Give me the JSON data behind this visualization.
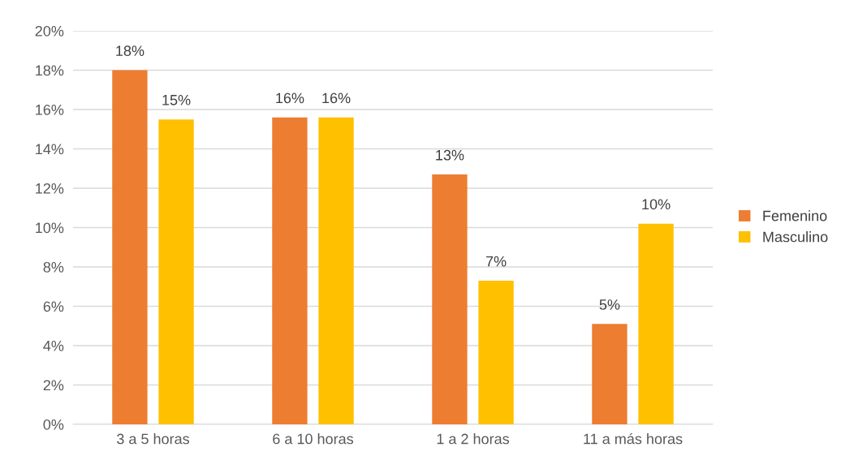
{
  "chart_data": {
    "type": "bar",
    "categories": [
      "3 a 5 horas",
      "6 a 10 horas",
      "1 a 2 horas",
      "11 a más horas"
    ],
    "series": [
      {
        "name": "Femenino",
        "color": "#ed7d31",
        "values": [
          18.0,
          15.6,
          12.7,
          5.1
        ],
        "value_labels": [
          "18%",
          "16%",
          "13%",
          "5%"
        ]
      },
      {
        "name": "Masculino",
        "color": "#ffc000",
        "values": [
          15.5,
          15.6,
          7.3,
          10.2
        ],
        "value_labels": [
          "15%",
          "16%",
          "7%",
          "10%"
        ]
      }
    ],
    "ylim": [
      0,
      20
    ],
    "yticks": [
      {
        "value": 0,
        "label": "0%"
      },
      {
        "value": 2,
        "label": "2%"
      },
      {
        "value": 4,
        "label": "4%"
      },
      {
        "value": 6,
        "label": "6%"
      },
      {
        "value": 8,
        "label": "8%"
      },
      {
        "value": 10,
        "label": "10%"
      },
      {
        "value": 12,
        "label": "12%"
      },
      {
        "value": 14,
        "label": "14%"
      },
      {
        "value": 16,
        "label": "16%"
      },
      {
        "value": 18,
        "label": "18%"
      },
      {
        "value": 20,
        "label": "20%"
      }
    ],
    "grid": "y",
    "legend": "right"
  }
}
